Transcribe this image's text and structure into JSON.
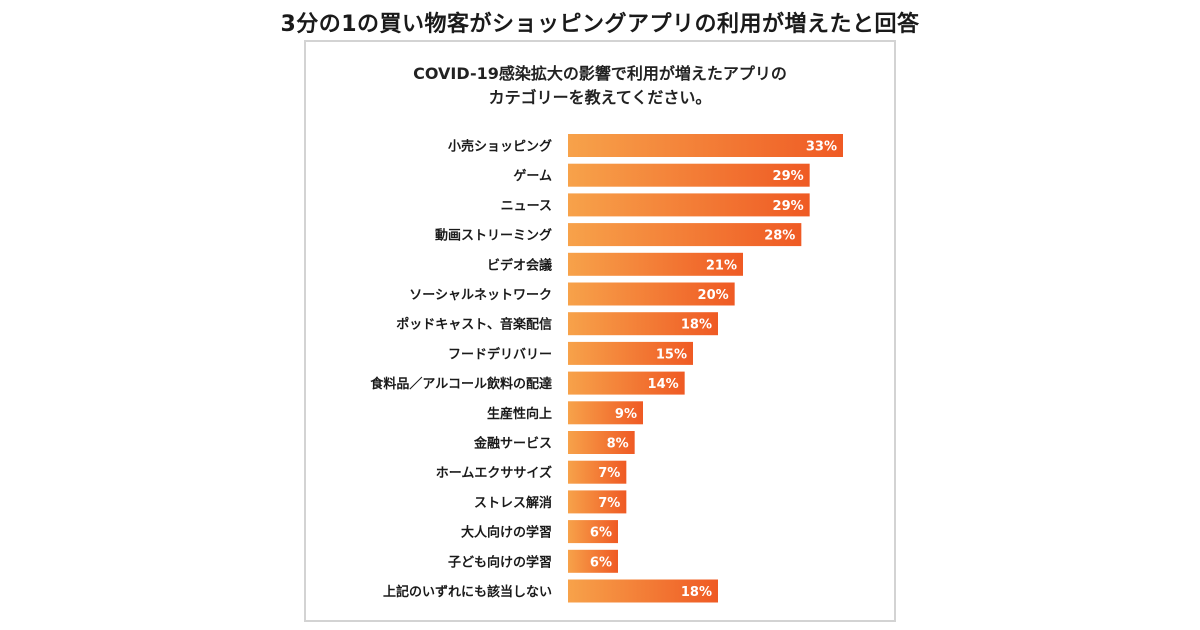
{
  "headline": "3分の1の買い物客がショッピングアプリの利用が増えたと回答",
  "chart_data": {
    "type": "bar",
    "orientation": "horizontal",
    "title_line1": "COVID-19感染拡大の影響で利用が増えたアプリの",
    "title_line2": "カテゴリーを教えてください。",
    "categories": [
      "小売ショッピング",
      "ゲーム",
      "ニュース",
      "動画ストリーミング",
      "ビデオ会議",
      "ソーシャルネットワーク",
      "ポッドキャスト、音楽配信",
      "フードデリバリー",
      "食料品／アルコール飲料の配達",
      "生産性向上",
      "金融サービス",
      "ホームエクササイズ",
      "ストレス解消",
      "大人向けの学習",
      "子ども向けの学習",
      "上記のいずれにも該当しない"
    ],
    "values": [
      33,
      29,
      29,
      28,
      21,
      20,
      18,
      15,
      14,
      9,
      8,
      7,
      7,
      6,
      6,
      18
    ],
    "value_labels": [
      "33%",
      "29%",
      "29%",
      "28%",
      "21%",
      "20%",
      "18%",
      "15%",
      "14%",
      "9%",
      "8%",
      "7%",
      "7%",
      "6%",
      "6%",
      "18%"
    ],
    "unit": "%",
    "xlim": [
      0,
      36
    ],
    "colors": {
      "bar_start": "#f7a24a",
      "bar_end": "#ef5a24"
    }
  }
}
